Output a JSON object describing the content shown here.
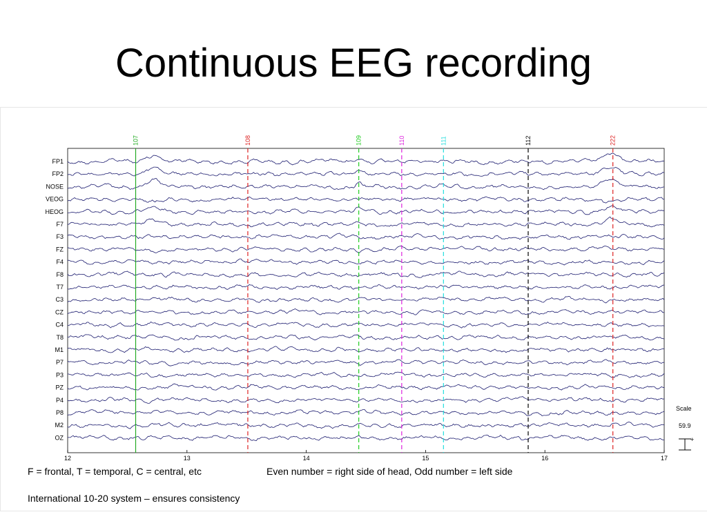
{
  "slide": {
    "title": "Continuous EEG recording",
    "caption_left": "F = frontal, T = temporal, C = central, etc",
    "caption_right": "Even number = right side of head, Odd number = left side",
    "caption_bottom": "International 10-20 system – ensures consistency"
  },
  "scale": {
    "label": "Scale",
    "value": "59.9"
  },
  "eeg": {
    "channels": [
      "FP1",
      "FP2",
      "NOSE",
      "VEOG",
      "HEOG",
      "F7",
      "F3",
      "FZ",
      "F4",
      "F8",
      "T7",
      "C3",
      "CZ",
      "C4",
      "T8",
      "M1",
      "P7",
      "P3",
      "PZ",
      "P4",
      "P8",
      "M2",
      "OZ"
    ],
    "x_ticks": [
      "12",
      "13",
      "14",
      "15",
      "16",
      "17"
    ],
    "x_range": [
      12,
      17
    ],
    "trace_color": "#1a1a6e",
    "events": [
      {
        "label": "107",
        "time": 12.57,
        "color": "#22aa22",
        "style": "solid"
      },
      {
        "label": "108",
        "time": 13.51,
        "color": "#dd2222",
        "style": "dashed"
      },
      {
        "label": "109",
        "time": 14.44,
        "color": "#22cc22",
        "style": "dashed"
      },
      {
        "label": "110",
        "time": 14.8,
        "color": "#dd22dd",
        "style": "dashed"
      },
      {
        "label": "111",
        "time": 15.15,
        "color": "#22dddd",
        "style": "dashed"
      },
      {
        "label": "112",
        "time": 15.86,
        "color": "#000000",
        "style": "dashed"
      },
      {
        "label": "222",
        "time": 16.57,
        "color": "#dd2222",
        "style": "dashed"
      }
    ]
  }
}
